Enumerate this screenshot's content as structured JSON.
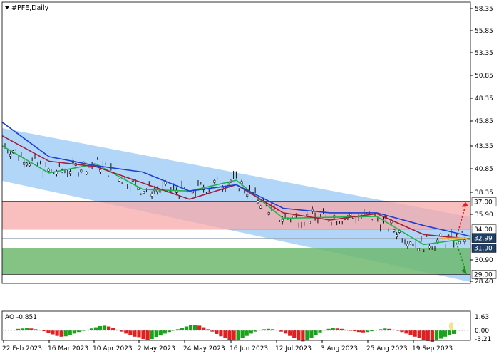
{
  "title": "#PFE,Daily",
  "indicator_label": "AO -0.851",
  "price_axis": {
    "ticks": [
      "58.35",
      "55.85",
      "53.35",
      "50.85",
      "48.35",
      "45.85",
      "43.35",
      "40.85",
      "38.35",
      "35.90",
      "30.90",
      "28.40"
    ],
    "badges": [
      {
        "label": "37.00",
        "fill": "#ffffff",
        "color": "#000000"
      },
      {
        "label": "34.00",
        "fill": "#ffffff",
        "color": "#000000"
      },
      {
        "label": "32.99",
        "fill": "#1f3f66",
        "color": "#ffffff"
      },
      {
        "label": "31.90",
        "fill": "#1f3f66",
        "color": "#ffffff"
      },
      {
        "label": "29.00",
        "fill": "#ffffff",
        "color": "#000000"
      }
    ]
  },
  "ao_axis": {
    "ticks": [
      "1.63",
      "0.00",
      "-3.21"
    ]
  },
  "time_axis": {
    "ticks": [
      "22 Feb 2023",
      "16 Mar 2023",
      "10 Apr 2023",
      "2 May 2023",
      "24 May 2023",
      "16 Jun 2023",
      "12 Jul 2023",
      "3 Aug 2023",
      "25 Aug 2023",
      "19 Sep 2023"
    ]
  },
  "levels": {
    "resistance_top": 37.0,
    "resistance_bottom": 34.0,
    "support_top": 31.9,
    "support_bottom": 29.0
  },
  "colors": {
    "channel": "#a9d1f7",
    "resistance_zone": "#f7a8a8",
    "support_zone": "#6fb86f",
    "ma_fast": "#22b14c",
    "ma_mid": "#a01e3c",
    "ma_slow": "#1a3fd6",
    "ao_up": "#1aa31a",
    "ao_down": "#e02020",
    "arrow": "#e02020",
    "current_marker": "#e8b24a"
  },
  "chart_data": {
    "type": "line",
    "title": "#PFE,Daily",
    "ylim": [
      28.4,
      58.35
    ],
    "x": [
      "22 Feb 2023",
      "16 Mar 2023",
      "10 Apr 2023",
      "2 May 2023",
      "24 May 2023",
      "16 Jun 2023",
      "12 Jul 2023",
      "3 Aug 2023",
      "25 Aug 2023",
      "19 Sep 2023",
      "end"
    ],
    "series": [
      {
        "values": [
          43.2,
          40.2,
          41.2,
          38.4,
          38.2,
          39.4,
          35.2,
          35.3,
          35.4,
          32.3,
          33.0
        ]
      },
      {
        "values": [
          44.3,
          41.5,
          40.9,
          39.1,
          37.3,
          38.9,
          35.8,
          35.0,
          35.7,
          33.4,
          32.9
        ]
      },
      {
        "values": [
          45.8,
          42.0,
          41.0,
          40.3,
          38.2,
          38.9,
          36.3,
          35.8,
          35.8,
          34.4,
          33.2
        ]
      }
    ],
    "ao": {
      "ylim": [
        -3.21,
        1.63
      ]
    }
  }
}
